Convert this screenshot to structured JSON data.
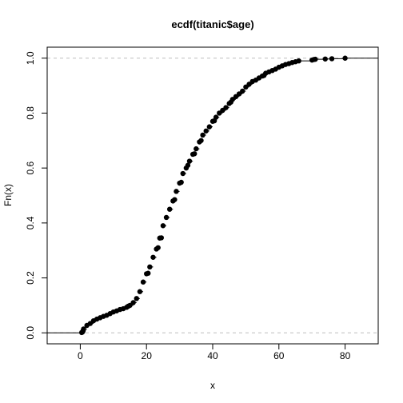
{
  "chart_data": {
    "type": "scatter",
    "title": "ecdf(titanic$age)",
    "xlabel": "x",
    "ylabel": "Fn(x)",
    "xlim": [
      -10,
      90
    ],
    "ylim": [
      -0.04,
      1.04
    ],
    "x_ticks": [
      0,
      20,
      40,
      60,
      80
    ],
    "y_ticks": [
      0.0,
      0.2,
      0.4,
      0.6,
      0.8,
      1.0
    ],
    "x_tick_labels": [
      "0",
      "20",
      "40",
      "60",
      "80"
    ],
    "y_tick_labels": [
      "0.0",
      "0.2",
      "0.4",
      "0.6",
      "0.8",
      "1.0"
    ],
    "reference_lines_y": [
      0,
      1
    ],
    "grid": false,
    "series": [
      {
        "x": [
          0.42,
          0.67,
          0.75,
          0.83,
          0.92,
          1,
          2,
          3,
          4,
          5,
          6,
          7,
          8,
          9,
          10,
          11,
          12,
          13,
          14,
          14.5,
          15,
          16,
          17,
          18,
          19,
          20,
          20.5,
          21,
          22,
          23,
          23.5,
          24,
          24.5,
          25,
          26,
          27,
          28,
          28.5,
          29,
          30,
          30.5,
          31,
          32,
          32.5,
          33,
          34,
          34.5,
          35,
          36,
          36.5,
          37,
          38,
          39,
          40,
          40.5,
          41,
          42,
          43,
          44,
          45,
          45.5,
          46,
          47,
          48,
          49,
          50,
          51,
          52,
          53,
          54,
          55,
          55.5,
          56,
          57,
          58,
          59,
          60,
          61,
          62,
          63,
          64,
          65,
          66,
          70,
          70.5,
          71,
          74,
          76,
          80
        ],
        "y": [
          0.001,
          0.003,
          0.005,
          0.007,
          0.01,
          0.014,
          0.027,
          0.034,
          0.044,
          0.05,
          0.055,
          0.06,
          0.064,
          0.07,
          0.076,
          0.08,
          0.085,
          0.088,
          0.093,
          0.097,
          0.1,
          0.11,
          0.125,
          0.15,
          0.185,
          0.215,
          0.217,
          0.24,
          0.275,
          0.305,
          0.31,
          0.345,
          0.346,
          0.39,
          0.42,
          0.45,
          0.48,
          0.485,
          0.515,
          0.545,
          0.548,
          0.58,
          0.6,
          0.61,
          0.625,
          0.65,
          0.652,
          0.67,
          0.695,
          0.7,
          0.72,
          0.735,
          0.75,
          0.77,
          0.772,
          0.785,
          0.8,
          0.81,
          0.82,
          0.835,
          0.84,
          0.85,
          0.86,
          0.87,
          0.88,
          0.895,
          0.905,
          0.915,
          0.92,
          0.928,
          0.935,
          0.937,
          0.945,
          0.95,
          0.955,
          0.96,
          0.967,
          0.972,
          0.977,
          0.98,
          0.984,
          0.987,
          0.99,
          0.993,
          0.995,
          0.996,
          0.997,
          0.998,
          1.0
        ]
      }
    ]
  }
}
